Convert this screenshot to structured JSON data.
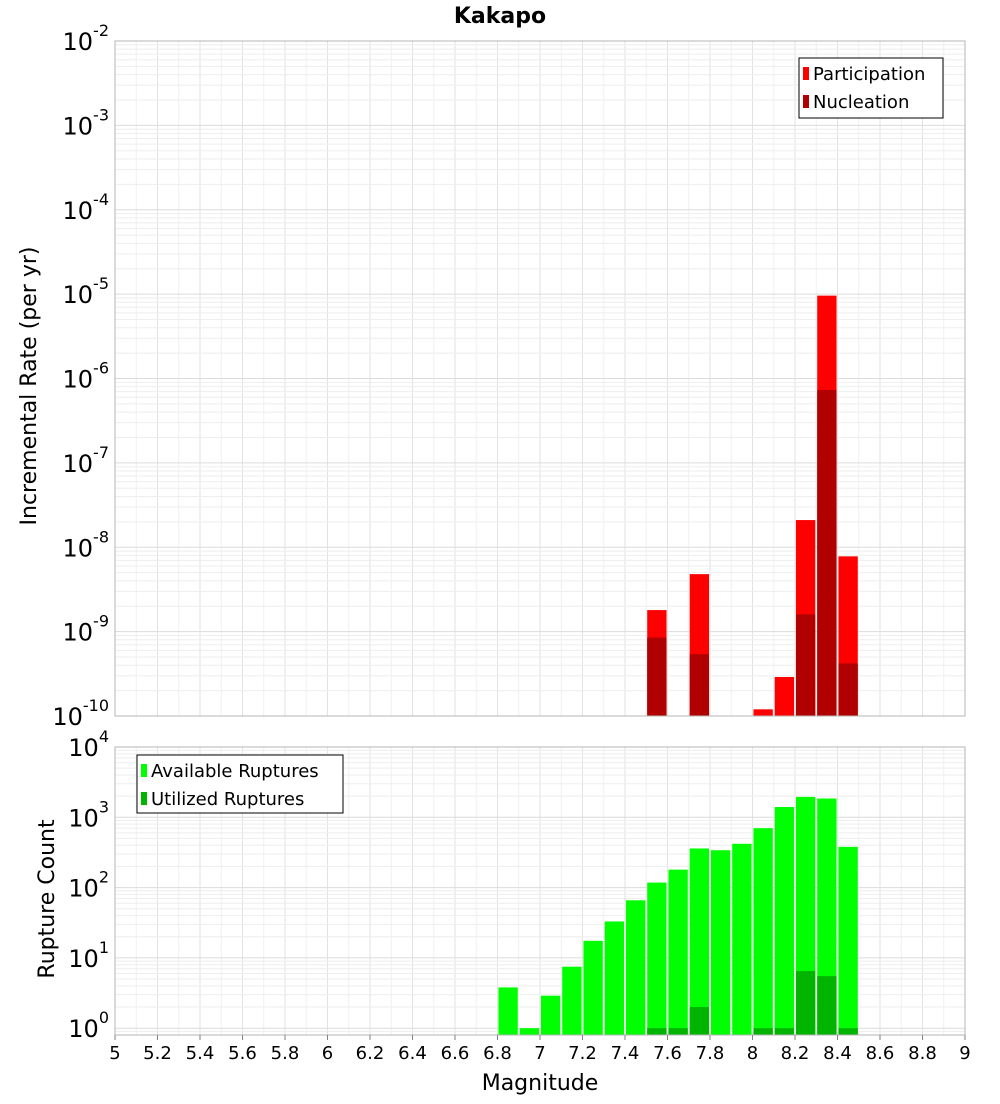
{
  "chart_data": [
    {
      "type": "bar",
      "title": "Kakapo",
      "ylabel": "Incremental Rate (per yr)",
      "xlabel": "",
      "xlim": [
        5,
        9
      ],
      "ylim": [
        1e-10,
        0.01
      ],
      "yscale": "log",
      "grid": true,
      "legend_position": "top-right",
      "ytick_labels": [
        {
          "base": "10",
          "exp": "-10",
          "value": 1e-10
        },
        {
          "base": "10",
          "exp": "-9",
          "value": 1e-09
        },
        {
          "base": "10",
          "exp": "-8",
          "value": 1e-08
        },
        {
          "base": "10",
          "exp": "-7",
          "value": 1e-07
        },
        {
          "base": "10",
          "exp": "-6",
          "value": 1e-06
        },
        {
          "base": "10",
          "exp": "-5",
          "value": 1e-05
        },
        {
          "base": "10",
          "exp": "-4",
          "value": 0.0001
        },
        {
          "base": "10",
          "exp": "-3",
          "value": 0.001
        },
        {
          "base": "10",
          "exp": "-2",
          "value": 0.01
        }
      ],
      "series": [
        {
          "name": "Participation",
          "color": "#ff0000",
          "points": [
            {
              "x": 7.55,
              "y": 1.8e-09
            },
            {
              "x": 7.75,
              "y": 4.8e-09
            },
            {
              "x": 8.05,
              "y": 1.2e-10
            },
            {
              "x": 8.15,
              "y": 2.9e-10
            },
            {
              "x": 8.25,
              "y": 2.1e-08
            },
            {
              "x": 8.35,
              "y": 9.6e-06
            },
            {
              "x": 8.45,
              "y": 7.8e-09
            }
          ]
        },
        {
          "name": "Nucleation",
          "color": "#b00000",
          "points": [
            {
              "x": 7.55,
              "y": 8.5e-10
            },
            {
              "x": 7.75,
              "y": 5.4e-10
            },
            {
              "x": 8.25,
              "y": 1.6e-09
            },
            {
              "x": 8.35,
              "y": 7.3e-07
            },
            {
              "x": 8.45,
              "y": 4.2e-10
            }
          ]
        }
      ]
    },
    {
      "type": "bar",
      "title": "",
      "ylabel": "Rupture Count",
      "xlabel": "Magnitude",
      "xlim": [
        5,
        9
      ],
      "ylim": [
        0.8,
        10000
      ],
      "yscale": "log",
      "grid": true,
      "legend_position": "top-left",
      "xtick_labels": [
        "5",
        "5.2",
        "5.4",
        "5.6",
        "5.8",
        "6",
        "6.2",
        "6.4",
        "6.6",
        "6.8",
        "7",
        "7.2",
        "7.4",
        "7.6",
        "7.8",
        "8",
        "8.2",
        "8.4",
        "8.6",
        "8.8",
        "9"
      ],
      "xtick_values": [
        5,
        5.2,
        5.4,
        5.6,
        5.8,
        6,
        6.2,
        6.4,
        6.6,
        6.8,
        7,
        7.2,
        7.4,
        7.6,
        7.8,
        8,
        8.2,
        8.4,
        8.6,
        8.8,
        9
      ],
      "ytick_labels": [
        {
          "base": "10",
          "exp": "0",
          "value": 1
        },
        {
          "base": "10",
          "exp": "1",
          "value": 10
        },
        {
          "base": "10",
          "exp": "2",
          "value": 100
        },
        {
          "base": "10",
          "exp": "3",
          "value": 1000
        },
        {
          "base": "10",
          "exp": "4",
          "value": 10000
        }
      ],
      "series": [
        {
          "name": "Available Ruptures",
          "color": "#00ff00",
          "points": [
            {
              "x": 6.85,
              "y": 3.8
            },
            {
              "x": 6.95,
              "y": 1
            },
            {
              "x": 7.05,
              "y": 2.9
            },
            {
              "x": 7.15,
              "y": 7.5
            },
            {
              "x": 7.25,
              "y": 17.5
            },
            {
              "x": 7.35,
              "y": 33
            },
            {
              "x": 7.45,
              "y": 66
            },
            {
              "x": 7.55,
              "y": 118
            },
            {
              "x": 7.65,
              "y": 180
            },
            {
              "x": 7.75,
              "y": 360
            },
            {
              "x": 7.85,
              "y": 340
            },
            {
              "x": 7.95,
              "y": 420
            },
            {
              "x": 8.05,
              "y": 700
            },
            {
              "x": 8.15,
              "y": 1400
            },
            {
              "x": 8.25,
              "y": 1950
            },
            {
              "x": 8.35,
              "y": 1850
            },
            {
              "x": 8.45,
              "y": 380
            }
          ]
        },
        {
          "name": "Utilized Ruptures",
          "color": "#00b400",
          "points": [
            {
              "x": 7.55,
              "y": 1
            },
            {
              "x": 7.65,
              "y": 1
            },
            {
              "x": 7.75,
              "y": 2
            },
            {
              "x": 8.05,
              "y": 1
            },
            {
              "x": 8.15,
              "y": 1
            },
            {
              "x": 8.25,
              "y": 6.5
            },
            {
              "x": 8.35,
              "y": 5.5
            },
            {
              "x": 8.45,
              "y": 1
            }
          ]
        }
      ]
    }
  ]
}
